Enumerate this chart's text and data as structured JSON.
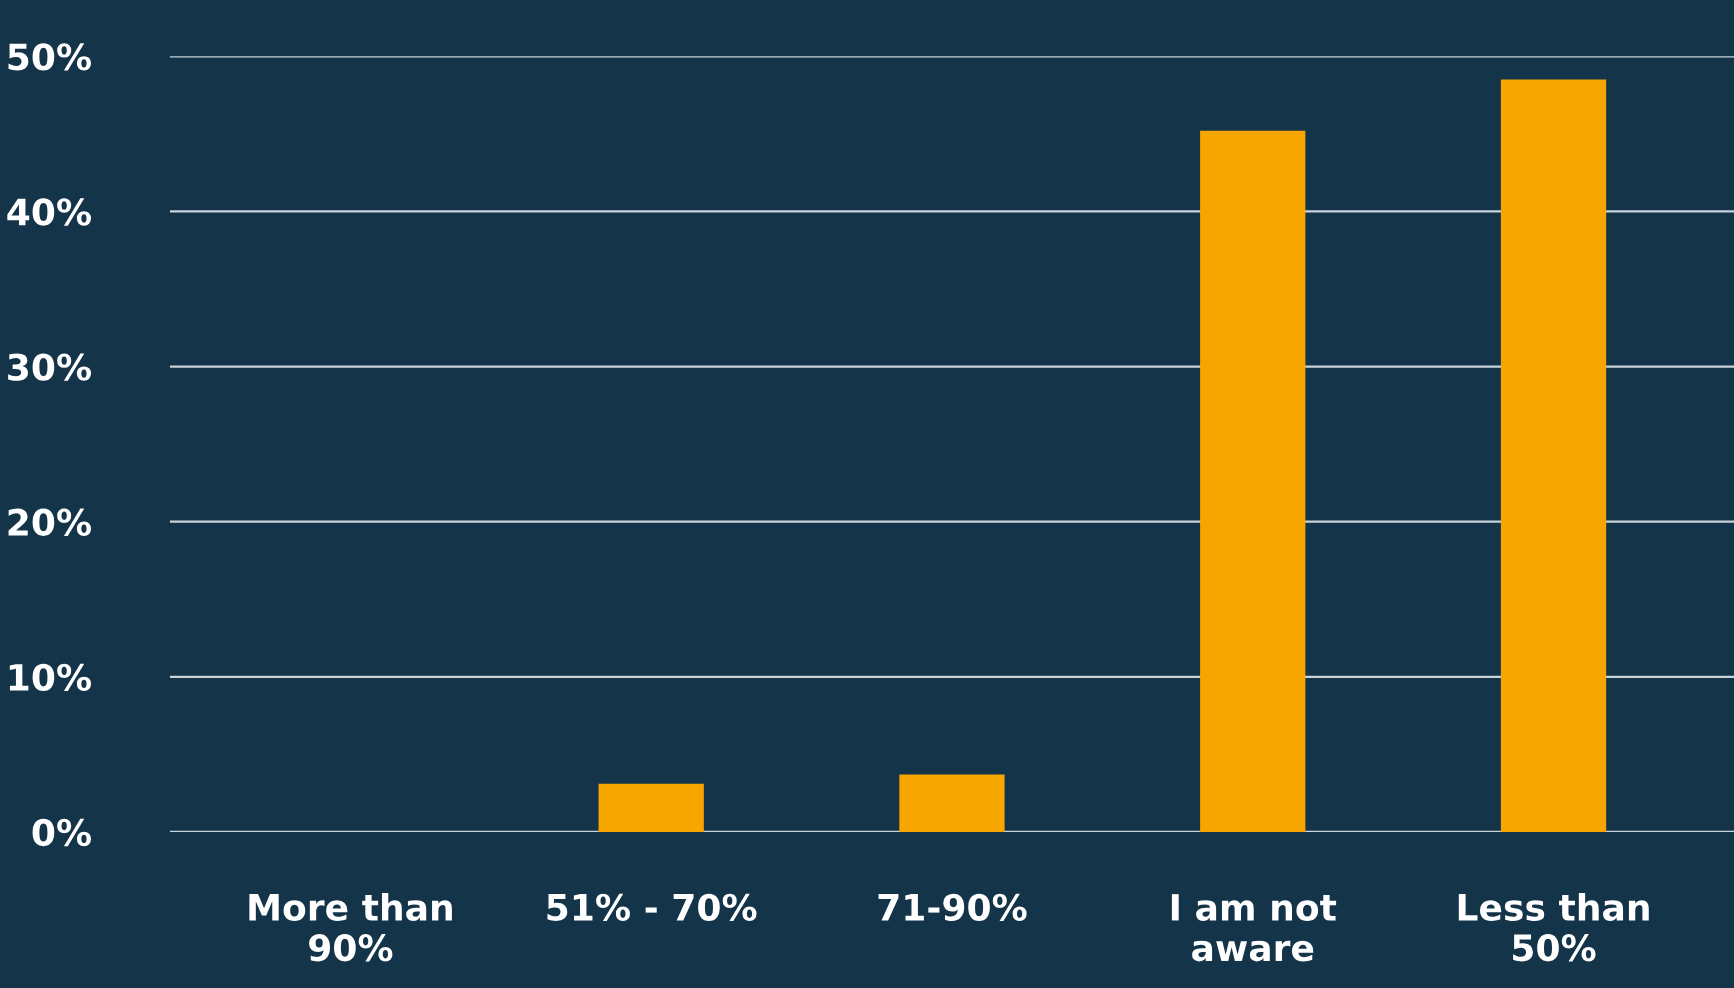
{
  "chart_data": {
    "type": "bar",
    "categories": [
      "More than\n90%",
      "51% - 70%",
      "71-90%",
      "I am not\naware",
      "Less than\n50%"
    ],
    "values": [
      0,
      3.1,
      3.7,
      45.2,
      48.5
    ],
    "color": "#f7a600",
    "ylim": [
      0,
      50
    ],
    "yticks": [
      {
        "value": 0,
        "label": "0%"
      },
      {
        "value": 10,
        "label": "10%"
      },
      {
        "value": 20,
        "label": "20%"
      },
      {
        "value": 30,
        "label": "30%"
      },
      {
        "value": 40,
        "label": "40%"
      },
      {
        "value": 50,
        "label": "50%"
      }
    ],
    "grid": "y"
  }
}
